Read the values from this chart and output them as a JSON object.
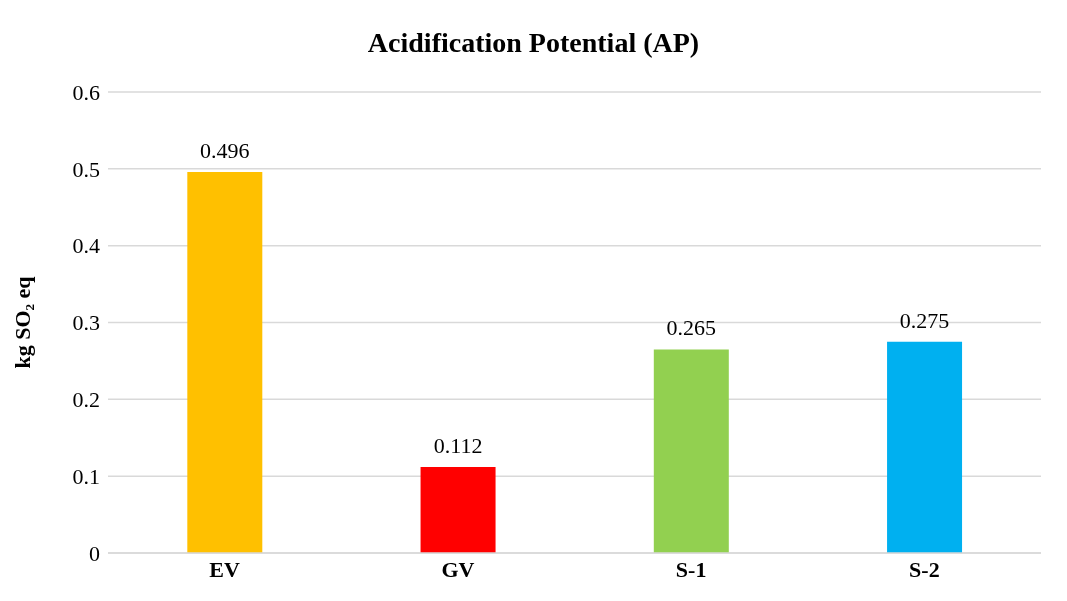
{
  "chart_data": {
    "type": "bar",
    "title": "Acidification Potential (AP)",
    "ylabel": "kg SO₂ eq",
    "categories": [
      "EV",
      "GV",
      "S-1",
      "S-2"
    ],
    "values": [
      0.496,
      0.112,
      0.265,
      0.275
    ],
    "colors": [
      "#ffc000",
      "#ff0000",
      "#92d050",
      "#00b0f0"
    ],
    "ylim": [
      0,
      0.6
    ],
    "yticks": [
      0,
      0.1,
      0.2,
      0.3,
      0.4,
      0.5,
      0.6
    ],
    "grid": "y",
    "data_labels": true,
    "legend": false
  }
}
